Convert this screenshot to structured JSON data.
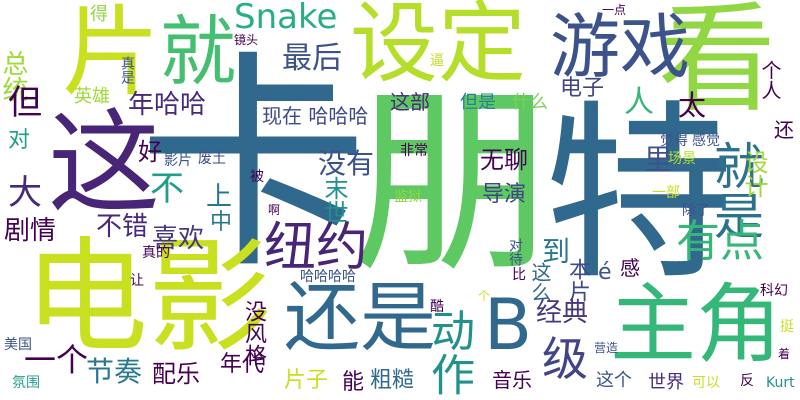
{
  "background": "#ffffff",
  "palette": {
    "purple": "#440154",
    "indigo": "#3b528b",
    "blue": "#31688e",
    "teal": "#21918c",
    "green": "#35b779",
    "lime": "#90d743",
    "yellow": "#c8e020"
  },
  "words": [
    {
      "text": "卡",
      "color": "#31688e",
      "vertical": false
    },
    {
      "text": "朋",
      "color": "#5ec962",
      "vertical": false
    },
    {
      "text": "特",
      "color": "#31688e",
      "vertical": false
    },
    {
      "text": "这",
      "color": "#482576",
      "vertical": false
    },
    {
      "text": "电影",
      "color": "#c8e020",
      "vertical": false
    },
    {
      "text": "片",
      "color": "#c8e020",
      "vertical": false
    },
    {
      "text": "看",
      "color": "#90d743",
      "vertical": false
    },
    {
      "text": "设定",
      "color": "#b5de2b",
      "vertical": false
    },
    {
      "text": "就",
      "color": "#44bf70",
      "vertical": false
    },
    {
      "text": "游戏",
      "color": "#3b528b",
      "vertical": false
    },
    {
      "text": "还是",
      "color": "#31688e",
      "vertical": false
    },
    {
      "text": "主角",
      "color": "#35b779",
      "vertical": false
    },
    {
      "text": "B",
      "color": "#31688e",
      "vertical": false
    },
    {
      "text": "级",
      "color": "#414487",
      "vertical": false
    },
    {
      "text": "纽约",
      "color": "#482576",
      "vertical": false
    },
    {
      "text": "就是",
      "color": "#2c728e",
      "vertical": true
    },
    {
      "text": "有点",
      "color": "#35b779",
      "vertical": false
    },
    {
      "text": "Snake",
      "color": "#29af7f",
      "vertical": false
    },
    {
      "text": "最后",
      "color": "#3b528b",
      "vertical": false
    },
    {
      "text": "总统",
      "color": "#a0da39",
      "vertical": true
    },
    {
      "text": "但",
      "color": "#440154",
      "vertical": false
    },
    {
      "text": "年哈哈",
      "color": "#482878",
      "vertical": false
    },
    {
      "text": "英雄",
      "color": "#a0da39",
      "vertical": false
    },
    {
      "text": "人",
      "color": "#35b779",
      "vertical": false
    },
    {
      "text": "电子",
      "color": "#414487",
      "vertical": false
    },
    {
      "text": "这部",
      "color": "#482878",
      "vertical": false
    },
    {
      "text": "太",
      "color": "#440154",
      "vertical": false
    },
    {
      "text": "现在 哈哈哈",
      "color": "#3e4989",
      "vertical": false
    },
    {
      "text": "但是",
      "color": "#26828e",
      "vertical": false
    },
    {
      "text": "什么",
      "color": "#7ad151",
      "vertical": false
    },
    {
      "text": "对",
      "color": "#1f9e89",
      "vertical": false
    },
    {
      "text": "好",
      "color": "#440154",
      "vertical": false
    },
    {
      "text": "影片",
      "color": "#3b528b",
      "vertical": false
    },
    {
      "text": "废土",
      "color": "#3e4989",
      "vertical": false
    },
    {
      "text": "没有",
      "color": "#3b528b",
      "vertical": false
    },
    {
      "text": "无聊",
      "color": "#440154",
      "vertical": false
    },
    {
      "text": "不",
      "color": "#1f9e89",
      "vertical": false
    },
    {
      "text": "大",
      "color": "#482878",
      "vertical": false
    },
    {
      "text": "上",
      "color": "#2a788e",
      "vertical": false
    },
    {
      "text": "末世",
      "color": "#21918c",
      "vertical": true
    },
    {
      "text": "中",
      "color": "#2a788e",
      "vertical": false
    },
    {
      "text": "不错",
      "color": "#482878",
      "vertical": false
    },
    {
      "text": "喜欢",
      "color": "#453781",
      "vertical": false
    },
    {
      "text": "剧情",
      "color": "#440154",
      "vertical": false
    },
    {
      "text": "导演",
      "color": "#414487",
      "vertical": false
    },
    {
      "text": "里",
      "color": "#3b528b",
      "vertical": false
    },
    {
      "text": "设计",
      "color": "#a0da39",
      "vertical": true
    },
    {
      "text": "还",
      "color": "#440154",
      "vertical": false
    },
    {
      "text": "到",
      "color": "#2a788e",
      "vertical": false
    },
    {
      "text": "本片",
      "color": "#3e4989",
      "vertical": true
    },
    {
      "text": "这么",
      "color": "#31688e",
      "vertical": true
    },
    {
      "text": "é",
      "color": "#3b528b",
      "vertical": false
    },
    {
      "text": "感",
      "color": "#440154",
      "vertical": false
    },
    {
      "text": "经典",
      "color": "#453781",
      "vertical": false
    },
    {
      "text": "动作",
      "color": "#21918c",
      "vertical": true
    },
    {
      "text": "一个",
      "color": "#440154",
      "vertical": false
    },
    {
      "text": "节奏",
      "color": "#2a788e",
      "vertical": false
    },
    {
      "text": "配乐",
      "color": "#440154",
      "vertical": false
    },
    {
      "text": "年代",
      "color": "#440154",
      "vertical": false
    },
    {
      "text": "片子",
      "color": "#c8e020",
      "vertical": false
    },
    {
      "text": "能",
      "color": "#440154",
      "vertical": false
    },
    {
      "text": "粗糙",
      "color": "#31688e",
      "vertical": false
    },
    {
      "text": "音乐",
      "color": "#440154",
      "vertical": false
    },
    {
      "text": "这个",
      "color": "#3b528b",
      "vertical": false
    },
    {
      "text": "世界",
      "color": "#472d7b",
      "vertical": false
    },
    {
      "text": "没风格",
      "color": "#440154",
      "vertical": true
    },
    {
      "text": "得",
      "color": "#90d743",
      "vertical": false
    },
    {
      "text": "真是",
      "color": "#3b528b",
      "vertical": true
    },
    {
      "text": "镜头",
      "color": "#440154",
      "vertical": false
    },
    {
      "text": "逼",
      "color": "#bddf26",
      "vertical": false
    },
    {
      "text": "一点",
      "color": "#440154",
      "vertical": false
    },
    {
      "text": "个人",
      "color": "#440154",
      "vertical": true
    },
    {
      "text": "觉得",
      "color": "#3b528b",
      "vertical": false
    },
    {
      "text": "感觉",
      "color": "#3b528b",
      "vertical": false
    },
    {
      "text": "场景",
      "color": "#b5de2b",
      "vertical": false
    },
    {
      "text": "非常",
      "color": "#440154",
      "vertical": false
    },
    {
      "text": "监狱",
      "color": "#90d743",
      "vertical": false
    },
    {
      "text": "被",
      "color": "#440154",
      "vertical": false
    },
    {
      "text": "啊",
      "color": "#440154",
      "vertical": false
    },
    {
      "text": "一部",
      "color": "#c8e020",
      "vertical": false
    },
    {
      "text": "除了",
      "color": "#3b528b",
      "vertical": false
    },
    {
      "text": "对待",
      "color": "#3b528b",
      "vertical": true
    },
    {
      "text": "真的",
      "color": "#440154",
      "vertical": false
    },
    {
      "text": "让",
      "color": "#440154",
      "vertical": false
    },
    {
      "text": "比",
      "color": "#440154",
      "vertical": false
    },
    {
      "text": "哈哈哈哈",
      "color": "#3b528b",
      "vertical": false
    },
    {
      "text": "个",
      "color": "#c8e020",
      "vertical": false
    },
    {
      "text": "酷",
      "color": "#440154",
      "vertical": false
    },
    {
      "text": "美国",
      "color": "#3b528b",
      "vertical": false
    },
    {
      "text": "氛围",
      "color": "#1f9e89",
      "vertical": false
    },
    {
      "text": "营造",
      "color": "#3b528b",
      "vertical": false
    },
    {
      "text": "可以",
      "color": "#c8e020",
      "vertical": false
    },
    {
      "text": "反",
      "color": "#440154",
      "vertical": false
    },
    {
      "text": "Kurt",
      "color": "#21918c",
      "vertical": false
    },
    {
      "text": "科幻",
      "color": "#440154",
      "vertical": false
    },
    {
      "text": "挺",
      "color": "#c8e020",
      "vertical": false
    },
    {
      "text": "着",
      "color": "#440154",
      "vertical": false
    }
  ]
}
